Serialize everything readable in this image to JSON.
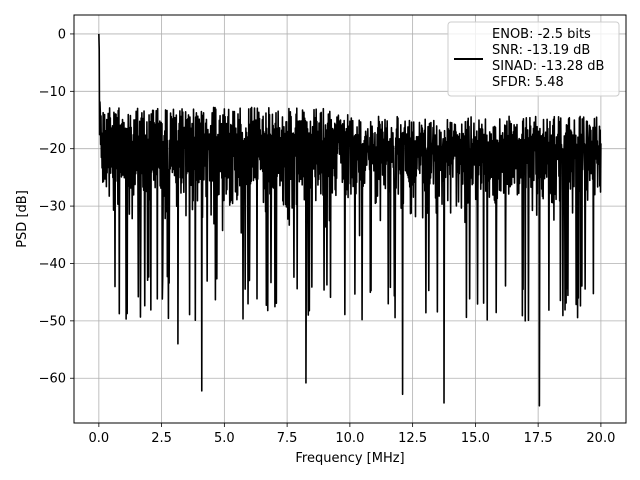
{
  "chart_data": {
    "type": "line",
    "title": "",
    "xlabel": "Frequency [MHz]",
    "ylabel": "PSD [dB]",
    "xlim": [
      -0.99,
      21.0
    ],
    "ylim": [
      -67.8,
      3.3
    ],
    "grid": true,
    "xticks": [
      0.0,
      2.5,
      5.0,
      7.5,
      10.0,
      12.5,
      15.0,
      17.5,
      20.0
    ],
    "xtick_labels": [
      "0.0",
      "2.5",
      "5.0",
      "7.5",
      "10.0",
      "12.5",
      "15.0",
      "17.5",
      "20.0"
    ],
    "yticks": [
      0,
      -10,
      -20,
      -30,
      -40,
      -50,
      -60
    ],
    "ytick_labels": [
      "0",
      "−10",
      "−20",
      "−30",
      "−40",
      "−50",
      "−60"
    ],
    "legend": {
      "placement": "top-right",
      "entries": [
        "ENOB: -2.5 bits",
        "SNR: -13.19 dB",
        "SINAD: -13.28 dB",
        "SFDR: 5.48"
      ]
    },
    "series": [
      {
        "color": "#000000",
        "peak": {
          "x": 0.0,
          "y": 0.0
        },
        "notable_dips": [
          {
            "x": 3.15,
            "y": -54.0
          },
          {
            "x": 4.1,
            "y": -62.2
          },
          {
            "x": 8.25,
            "y": -60.8
          },
          {
            "x": 12.1,
            "y": -62.8
          },
          {
            "x": 13.75,
            "y": -64.3
          },
          {
            "x": 17.55,
            "y": -64.8
          }
        ],
        "noise_floor_mean": -28,
        "upper_envelope": -17,
        "lower_envelope": -42
      }
    ]
  }
}
